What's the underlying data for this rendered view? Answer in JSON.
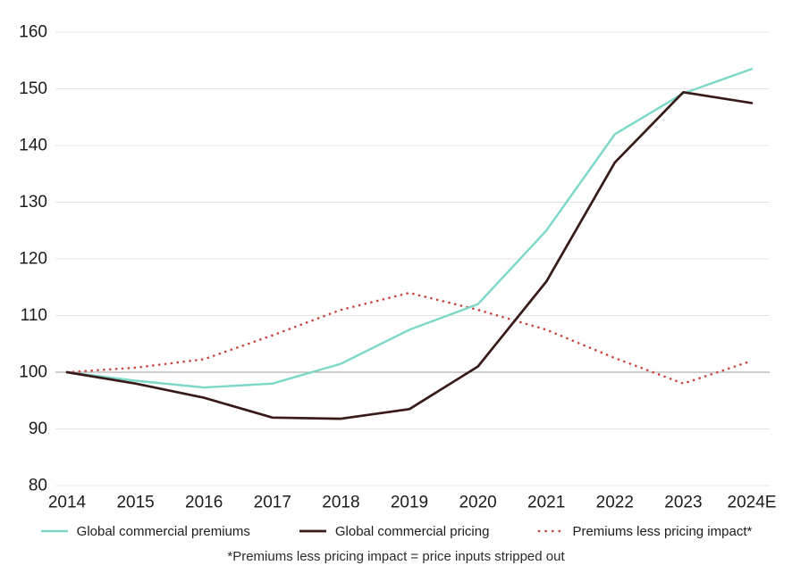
{
  "chart_data": {
    "type": "line",
    "title": "",
    "categories": [
      "2014",
      "2015",
      "2016",
      "2017",
      "2018",
      "2019",
      "2020",
      "2021",
      "2022",
      "2023",
      "2024E"
    ],
    "series": [
      {
        "name": "Global commercial premiums",
        "color": "#7bd8c8",
        "style": "solid",
        "stroke_width": 2.4,
        "values": [
          100,
          98.5,
          97.3,
          98,
          101.5,
          107.5,
          112,
          125,
          142,
          149.2,
          153.5
        ]
      },
      {
        "name": "Global commercial pricing",
        "color": "#381a18",
        "style": "solid",
        "stroke_width": 2.7,
        "values": [
          100,
          98,
          95.5,
          92,
          91.8,
          93.5,
          101,
          116,
          137,
          149.4,
          147.5
        ]
      },
      {
        "name": "Premiums less pricing impact*",
        "color": "#cc423a",
        "style": "dotted",
        "stroke_width": 2.6,
        "values": [
          100,
          100.8,
          102.3,
          106.5,
          111,
          114,
          111,
          107.5,
          102.5,
          98,
          102
        ]
      }
    ],
    "y_ticks": [
      80,
      90,
      100,
      110,
      120,
      130,
      140,
      150,
      160
    ],
    "ylim": [
      80,
      160
    ],
    "baseline_value": 100,
    "grid": true,
    "legend_position": "bottom",
    "footnote": "*Premiums less pricing impact = price inputs stripped out",
    "colors": {
      "grid": "#e4e4e4",
      "baseline": "#9c9c9c",
      "text": "#1c1c1c",
      "background": "#ffffff"
    }
  }
}
